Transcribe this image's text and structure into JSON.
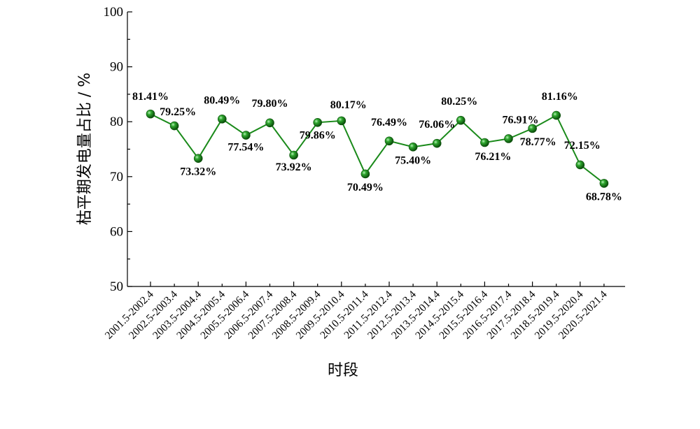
{
  "chart_data": {
    "type": "line",
    "title": "",
    "xlabel": "时段",
    "ylabel": "枯平期发电量占比 / %",
    "ylim": [
      50,
      100
    ],
    "yticks": [
      50,
      60,
      70,
      80,
      90,
      100
    ],
    "grid": false,
    "legend": "none",
    "categories": [
      "2001.5-2002.4",
      "2002.5-2003.4",
      "2003.5-2004.4",
      "2004.5-2005.4",
      "2005.5-2006.4",
      "2006.5-2007.4",
      "2007.5-2008.4",
      "2008.5-2009.4",
      "2009.5-2010.4",
      "2010.5-2011.4",
      "2011.5-2012.4",
      "2012.5-2013.4",
      "2013.5-2014.4",
      "2014.5-2015.4",
      "2015.5-2016.4",
      "2016.5-2017.4",
      "2017.5-2018.4",
      "2018.5-2019.4",
      "2019.5-2020.4",
      "2020.5-2021.4"
    ],
    "series": [
      {
        "values": [
          81.41,
          79.25,
          73.32,
          80.49,
          77.54,
          79.8,
          73.92,
          79.86,
          80.17,
          70.49,
          76.49,
          75.4,
          76.06,
          80.25,
          76.21,
          76.91,
          78.77,
          81.16,
          72.15,
          68.78
        ],
        "data_labels": [
          "81.41%",
          "79.25%",
          "73.32%",
          "80.49%",
          "77.54%",
          "79.80%",
          "73.92%",
          "79.86%",
          "80.17%",
          "70.49%",
          "76.49%",
          "75.40%",
          "76.06%",
          "80.25%",
          "76.21%",
          "76.91%",
          "78.77%",
          "81.16%",
          "72.15%",
          "68.78%"
        ],
        "color": "#1a8a1a",
        "marker_color": "#1a7a1a"
      }
    ]
  }
}
